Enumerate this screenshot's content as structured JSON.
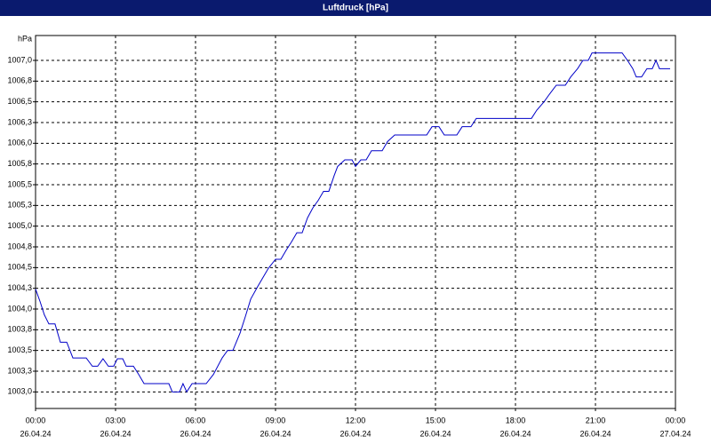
{
  "chart_data": {
    "type": "line",
    "title": "Luftdruck [hPa]",
    "ylabel": "hPa",
    "x": [
      0,
      0.17,
      0.33,
      0.5,
      0.73,
      0.93,
      1.17,
      1.4,
      1.9,
      2.13,
      2.33,
      2.53,
      2.73,
      2.93,
      3.07,
      3.27,
      3.4,
      3.67,
      3.87,
      4.07,
      5.0,
      5.13,
      5.4,
      5.53,
      5.67,
      5.87,
      6.4,
      6.67,
      7.0,
      7.2,
      7.4,
      7.67,
      7.87,
      8.07,
      8.33,
      8.53,
      8.73,
      9.0,
      9.2,
      9.4,
      9.6,
      9.8,
      10.0,
      10.2,
      10.4,
      10.6,
      10.8,
      11.0,
      11.2,
      11.33,
      11.6,
      11.87,
      12.0,
      12.2,
      12.4,
      12.6,
      13.0,
      13.2,
      13.47,
      14.67,
      14.87,
      15.13,
      15.33,
      15.8,
      16.0,
      16.33,
      16.53,
      18.6,
      18.8,
      19.07,
      19.27,
      19.53,
      19.87,
      20.07,
      20.33,
      20.53,
      20.73,
      20.87,
      22.0,
      22.2,
      22.4,
      22.53,
      22.73,
      22.93,
      23.13,
      23.27,
      23.4,
      23.8
    ],
    "values": [
      1004.24,
      1004.09,
      1003.93,
      1003.82,
      1003.82,
      1003.6,
      1003.6,
      1003.41,
      1003.41,
      1003.31,
      1003.31,
      1003.4,
      1003.31,
      1003.31,
      1003.4,
      1003.4,
      1003.31,
      1003.31,
      1003.21,
      1003.1,
      1003.1,
      1003.0,
      1003.0,
      1003.1,
      1003.0,
      1003.1,
      1003.1,
      1003.21,
      1003.41,
      1003.5,
      1003.5,
      1003.71,
      1003.91,
      1004.12,
      1004.27,
      1004.38,
      1004.49,
      1004.6,
      1004.6,
      1004.71,
      1004.81,
      1004.92,
      1004.92,
      1005.1,
      1005.22,
      1005.31,
      1005.42,
      1005.42,
      1005.61,
      1005.72,
      1005.8,
      1005.8,
      1005.72,
      1005.8,
      1005.8,
      1005.91,
      1005.91,
      1006.02,
      1006.1,
      1006.1,
      1006.2,
      1006.2,
      1006.1,
      1006.1,
      1006.2,
      1006.2,
      1006.3,
      1006.3,
      1006.4,
      1006.5,
      1006.59,
      1006.7,
      1006.7,
      1006.8,
      1006.9,
      1007.0,
      1007.0,
      1007.09,
      1007.09,
      1007.0,
      1006.9,
      1006.8,
      1006.8,
      1006.9,
      1006.9,
      1007.0,
      1006.9,
      1006.9
    ],
    "color": "#0000c8",
    "xlim": [
      0,
      24
    ],
    "xticks": [
      {
        "value": 0,
        "label": "00:00"
      },
      {
        "value": 3,
        "label": "03:00"
      },
      {
        "value": 6,
        "label": "06:00"
      },
      {
        "value": 9,
        "label": "09:00"
      },
      {
        "value": 12,
        "label": "12:00"
      },
      {
        "value": 15,
        "label": "15:00"
      },
      {
        "value": 18,
        "label": "18:00"
      },
      {
        "value": 21,
        "label": "21:00"
      },
      {
        "value": 24,
        "label": "00:00"
      }
    ],
    "xtick_dates": [
      "26.04.24",
      "26.04.24",
      "26.04.24",
      "26.04.24",
      "26.04.24",
      "26.04.24",
      "26.04.24",
      "26.04.24",
      "27.04.24"
    ],
    "ylim": [
      1002.8,
      1007.3
    ],
    "yticks": [
      {
        "value": 1003,
        "label": "1003,0"
      },
      {
        "value": 1003.25,
        "label": "1003,3"
      },
      {
        "value": 1003.5,
        "label": "1003,5"
      },
      {
        "value": 1003.75,
        "label": "1003,8"
      },
      {
        "value": 1004,
        "label": "1004,0"
      },
      {
        "value": 1004.25,
        "label": "1004,3"
      },
      {
        "value": 1004.5,
        "label": "1004,5"
      },
      {
        "value": 1004.75,
        "label": "1004,8"
      },
      {
        "value": 1005,
        "label": "1005,0"
      },
      {
        "value": 1005.25,
        "label": "1005,3"
      },
      {
        "value": 1005.5,
        "label": "1005,5"
      },
      {
        "value": 1005.75,
        "label": "1005,8"
      },
      {
        "value": 1006,
        "label": "1006,0"
      },
      {
        "value": 1006.25,
        "label": "1006,3"
      },
      {
        "value": 1006.5,
        "label": "1006,5"
      },
      {
        "value": 1006.75,
        "label": "1006,8"
      },
      {
        "value": 1007,
        "label": "1007,0"
      }
    ],
    "grid": true
  }
}
